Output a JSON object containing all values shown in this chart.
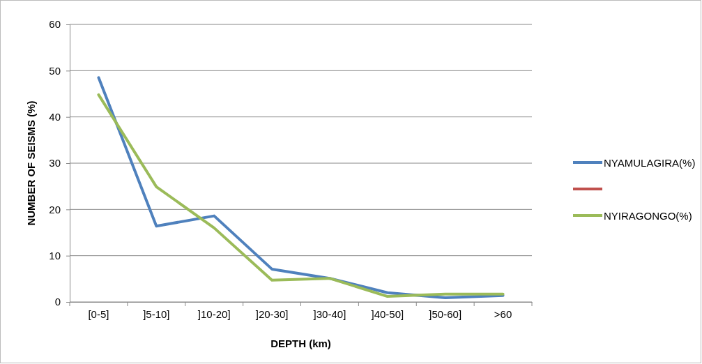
{
  "chart_data": {
    "type": "line",
    "xlabel": "DEPTH (km)",
    "ylabel": "NUMBER OF SEISMS (%)",
    "categories": [
      "[0-5]",
      "]5-10]",
      "]10-20]",
      "]20-30]",
      "]30-40]",
      "]40-50]",
      "]50-60]",
      ">60"
    ],
    "series": [
      {
        "name": "NYAMULAGIRA(%)",
        "color": "#4f81bd",
        "values": [
          48.5,
          16.4,
          18.6,
          7.1,
          5.1,
          2.0,
          0.9,
          1.4
        ]
      },
      {
        "color": "#c0504d",
        "values": [
          null,
          null,
          null,
          null,
          null,
          null,
          null,
          null
        ]
      },
      {
        "name": "NYIRAGONGO(%)",
        "color": "#9bbb59",
        "values": [
          44.8,
          24.9,
          16.0,
          4.7,
          5.1,
          1.2,
          1.7,
          1.7
        ]
      }
    ],
    "ylim": [
      0,
      60
    ],
    "yticks": [
      0,
      10,
      20,
      30,
      40,
      50,
      60
    ],
    "grid": "y",
    "legend": "right",
    "marker": "none",
    "line_style": "solid"
  }
}
